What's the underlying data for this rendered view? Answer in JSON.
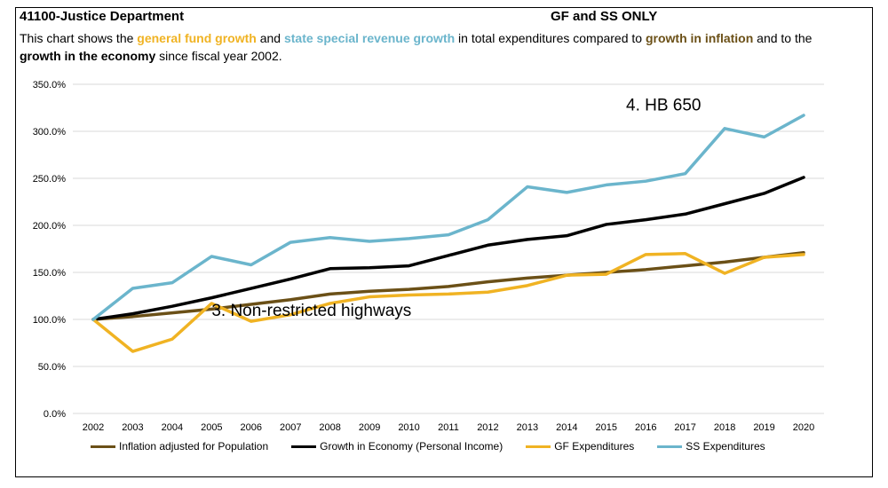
{
  "header": {
    "title": "41100-Justice Department",
    "scope": "GF and SS ONLY"
  },
  "description": {
    "part1": "This chart shows the ",
    "gf": "general fund growth",
    "part2": "  and ",
    "ss": "state special revenue growth",
    "part3": " in total expenditures compared to ",
    "infl": "growth in inflation",
    "part4": " and to the ",
    "econ": "growth in the economy",
    "part5": " since fiscal year 2002."
  },
  "colors": {
    "gf": "#f0b323",
    "ss": "#6bb5cc",
    "inflation": "#6b5017",
    "economy": "#000000"
  },
  "chart_data": {
    "type": "line",
    "x": [
      "2002",
      "2003",
      "2004",
      "2005",
      "2006",
      "2007",
      "2008",
      "2009",
      "2010",
      "2011",
      "2012",
      "2013",
      "2014",
      "2015",
      "2016",
      "2017",
      "2018",
      "2019",
      "2020"
    ],
    "ylim": [
      0,
      350
    ],
    "yticks": [
      "0.0%",
      "50.0%",
      "100.0%",
      "150.0%",
      "200.0%",
      "250.0%",
      "300.0%",
      "350.0%"
    ],
    "grid": true,
    "legend_position": "bottom",
    "series": [
      {
        "name": "Inflation adjusted for Population",
        "color": "#6b5017",
        "values": [
          100,
          103,
          107,
          111,
          116,
          121,
          127,
          130,
          132,
          135,
          140,
          144,
          147,
          150,
          153,
          157,
          161,
          166,
          171
        ]
      },
      {
        "name": "Growth in Economy (Personal Income)",
        "color": "#000000",
        "values": [
          100,
          106,
          114,
          123,
          133,
          143,
          154,
          155,
          157,
          168,
          179,
          185,
          189,
          201,
          206,
          212,
          223,
          234,
          251
        ]
      },
      {
        "name": "GF Expenditures",
        "color": "#f0b323",
        "values": [
          100,
          66,
          79,
          117,
          98,
          105,
          117,
          124,
          126,
          127,
          129,
          136,
          147,
          148,
          169,
          170,
          149,
          166,
          169
        ]
      },
      {
        "name": "SS Expenditures",
        "color": "#6bb5cc",
        "values": [
          100,
          133,
          139,
          167,
          158,
          182,
          187,
          183,
          186,
          190,
          206,
          241,
          235,
          243,
          247,
          255,
          303,
          294,
          317
        ]
      }
    ],
    "annotations": [
      {
        "text": "3. Non-restricted highways",
        "x": "2005",
        "y": 104
      },
      {
        "text": "4. HB 650",
        "x": "2015.5",
        "y": 322
      }
    ]
  }
}
